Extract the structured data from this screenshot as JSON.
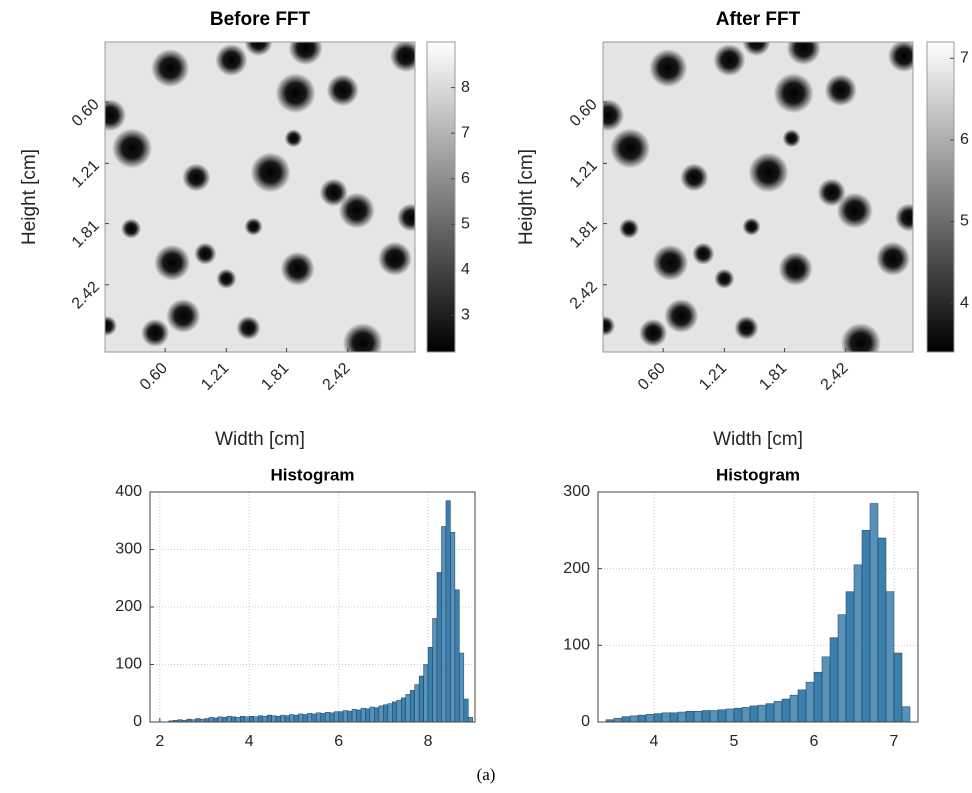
{
  "chart_data": [
    {
      "type": "image",
      "title": "Before FFT",
      "xlabel": "Width [cm]",
      "ylabel": "Height [cm]",
      "xlim": [
        0,
        3.09
      ],
      "ylim": [
        0,
        3.09
      ],
      "yreverse": true,
      "xticks": [
        {
          "value": 0.6,
          "label": "0.60"
        },
        {
          "value": 1.21,
          "label": "1.21"
        },
        {
          "value": 1.81,
          "label": "1.81"
        },
        {
          "value": 2.42,
          "label": "2.42"
        }
      ],
      "yticks": [
        {
          "value": 0.6,
          "label": "0.60"
        },
        {
          "value": 1.21,
          "label": "1.21"
        },
        {
          "value": 1.81,
          "label": "1.81"
        },
        {
          "value": 2.42,
          "label": "2.42"
        }
      ],
      "colormap": "gray",
      "clim": [
        2.2,
        9.0
      ],
      "cticks": [
        3,
        4,
        5,
        6,
        7,
        8
      ],
      "background": 8.3,
      "spots": [
        {
          "x": 0.65,
          "y": 0.26,
          "r": 0.19
        },
        {
          "x": 1.26,
          "y": 0.18,
          "r": 0.16
        },
        {
          "x": 1.53,
          "y": 0.0,
          "r": 0.14
        },
        {
          "x": 2.0,
          "y": 0.06,
          "r": 0.17
        },
        {
          "x": 3.0,
          "y": 0.14,
          "r": 0.16
        },
        {
          "x": 0.05,
          "y": 0.73,
          "r": 0.16
        },
        {
          "x": 0.27,
          "y": 1.06,
          "r": 0.2
        },
        {
          "x": 1.9,
          "y": 0.51,
          "r": 0.2
        },
        {
          "x": 2.37,
          "y": 0.48,
          "r": 0.16
        },
        {
          "x": 1.88,
          "y": 0.96,
          "r": 0.09
        },
        {
          "x": 0.91,
          "y": 1.35,
          "r": 0.14
        },
        {
          "x": 1.65,
          "y": 1.3,
          "r": 0.2
        },
        {
          "x": 2.28,
          "y": 1.5,
          "r": 0.14
        },
        {
          "x": 2.51,
          "y": 1.68,
          "r": 0.18
        },
        {
          "x": 3.05,
          "y": 1.75,
          "r": 0.14
        },
        {
          "x": 0.26,
          "y": 1.86,
          "r": 0.1
        },
        {
          "x": 1.48,
          "y": 1.84,
          "r": 0.09
        },
        {
          "x": 0.67,
          "y": 2.2,
          "r": 0.18
        },
        {
          "x": 1.0,
          "y": 2.11,
          "r": 0.11
        },
        {
          "x": 1.21,
          "y": 2.36,
          "r": 0.1
        },
        {
          "x": 1.92,
          "y": 2.26,
          "r": 0.17
        },
        {
          "x": 2.89,
          "y": 2.16,
          "r": 0.17
        },
        {
          "x": 0.78,
          "y": 2.73,
          "r": 0.17
        },
        {
          "x": 0.5,
          "y": 2.9,
          "r": 0.14
        },
        {
          "x": 1.43,
          "y": 2.85,
          "r": 0.12
        },
        {
          "x": 2.57,
          "y": 3.0,
          "r": 0.2
        },
        {
          "x": 0.02,
          "y": 2.83,
          "r": 0.1
        }
      ]
    },
    {
      "type": "image",
      "title": "After FFT",
      "xlabel": "Width [cm]",
      "ylabel": "Height [cm]",
      "xlim": [
        0,
        3.09
      ],
      "ylim": [
        0,
        3.09
      ],
      "yreverse": true,
      "xticks": [
        {
          "value": 0.6,
          "label": "0.60"
        },
        {
          "value": 1.21,
          "label": "1.21"
        },
        {
          "value": 1.81,
          "label": "1.81"
        },
        {
          "value": 2.42,
          "label": "2.42"
        }
      ],
      "yticks": [
        {
          "value": 0.6,
          "label": "0.60"
        },
        {
          "value": 1.21,
          "label": "1.21"
        },
        {
          "value": 1.81,
          "label": "1.81"
        },
        {
          "value": 2.42,
          "label": "2.42"
        }
      ],
      "colormap": "gray",
      "clim": [
        3.4,
        7.2
      ],
      "cticks": [
        4,
        5,
        6,
        7
      ],
      "background": 6.8,
      "spots": [
        {
          "x": 0.65,
          "y": 0.26,
          "r": 0.19
        },
        {
          "x": 1.26,
          "y": 0.18,
          "r": 0.16
        },
        {
          "x": 1.53,
          "y": 0.0,
          "r": 0.14
        },
        {
          "x": 2.0,
          "y": 0.06,
          "r": 0.17
        },
        {
          "x": 3.0,
          "y": 0.14,
          "r": 0.16
        },
        {
          "x": 0.05,
          "y": 0.73,
          "r": 0.16
        },
        {
          "x": 0.27,
          "y": 1.06,
          "r": 0.2
        },
        {
          "x": 1.9,
          "y": 0.51,
          "r": 0.2
        },
        {
          "x": 2.37,
          "y": 0.48,
          "r": 0.16
        },
        {
          "x": 1.88,
          "y": 0.96,
          "r": 0.09
        },
        {
          "x": 0.91,
          "y": 1.35,
          "r": 0.14
        },
        {
          "x": 1.65,
          "y": 1.3,
          "r": 0.2
        },
        {
          "x": 2.28,
          "y": 1.5,
          "r": 0.14
        },
        {
          "x": 2.51,
          "y": 1.68,
          "r": 0.18
        },
        {
          "x": 3.05,
          "y": 1.75,
          "r": 0.14
        },
        {
          "x": 0.26,
          "y": 1.86,
          "r": 0.1
        },
        {
          "x": 1.48,
          "y": 1.84,
          "r": 0.09
        },
        {
          "x": 0.67,
          "y": 2.2,
          "r": 0.18
        },
        {
          "x": 1.0,
          "y": 2.11,
          "r": 0.11
        },
        {
          "x": 1.21,
          "y": 2.36,
          "r": 0.1
        },
        {
          "x": 1.92,
          "y": 2.26,
          "r": 0.17
        },
        {
          "x": 2.89,
          "y": 2.16,
          "r": 0.17
        },
        {
          "x": 0.78,
          "y": 2.73,
          "r": 0.17
        },
        {
          "x": 0.5,
          "y": 2.9,
          "r": 0.14
        },
        {
          "x": 1.43,
          "y": 2.85,
          "r": 0.12
        },
        {
          "x": 2.57,
          "y": 3.0,
          "r": 0.2
        },
        {
          "x": 0.02,
          "y": 2.83,
          "r": 0.1
        }
      ]
    },
    {
      "type": "histogram",
      "title": "Histogram",
      "color": "#3b7fad",
      "grid": true,
      "xlim": [
        1.78,
        9.05
      ],
      "ylim": [
        0,
        400
      ],
      "xticks": [
        2,
        4,
        6,
        8
      ],
      "yticks": [
        0,
        100,
        200,
        300,
        400
      ],
      "bins": [
        2.2,
        2.3,
        2.4,
        2.5,
        2.6,
        2.7,
        2.8,
        2.9,
        3.0,
        3.1,
        3.2,
        3.3,
        3.4,
        3.5,
        3.6,
        3.7,
        3.8,
        3.9,
        4.0,
        4.1,
        4.2,
        4.3,
        4.4,
        4.5,
        4.6,
        4.7,
        4.8,
        4.9,
        5.0,
        5.1,
        5.2,
        5.3,
        5.4,
        5.5,
        5.6,
        5.7,
        5.8,
        5.9,
        6.0,
        6.1,
        6.2,
        6.3,
        6.4,
        6.5,
        6.6,
        6.7,
        6.8,
        6.9,
        7.0,
        7.1,
        7.2,
        7.3,
        7.4,
        7.5,
        7.6,
        7.7,
        7.8,
        7.9,
        8.0,
        8.1,
        8.2,
        8.3,
        8.4,
        8.5,
        8.6,
        8.7,
        8.8,
        8.9,
        9.0
      ],
      "values": [
        2,
        3,
        4,
        3,
        5,
        4,
        6,
        5,
        6,
        8,
        7,
        9,
        8,
        10,
        9,
        8,
        10,
        9,
        10,
        9,
        11,
        10,
        12,
        11,
        10,
        12,
        11,
        13,
        12,
        14,
        13,
        15,
        14,
        16,
        15,
        17,
        16,
        18,
        18,
        20,
        19,
        22,
        21,
        24,
        23,
        26,
        25,
        28,
        30,
        32,
        35,
        38,
        42,
        48,
        55,
        65,
        80,
        100,
        130,
        180,
        260,
        340,
        385,
        330,
        230,
        120,
        40,
        8
      ]
    },
    {
      "type": "histogram",
      "title": "Histogram",
      "color": "#3b7fad",
      "grid": true,
      "xlim": [
        3.3,
        7.3
      ],
      "ylim": [
        0,
        300
      ],
      "xticks": [
        4,
        5,
        6,
        7
      ],
      "yticks": [
        0,
        100,
        200,
        300
      ],
      "bins": [
        3.4,
        3.5,
        3.6,
        3.7,
        3.8,
        3.9,
        4.0,
        4.1,
        4.2,
        4.3,
        4.4,
        4.5,
        4.6,
        4.7,
        4.8,
        4.9,
        5.0,
        5.1,
        5.2,
        5.3,
        5.4,
        5.5,
        5.6,
        5.7,
        5.8,
        5.9,
        6.0,
        6.1,
        6.2,
        6.3,
        6.4,
        6.5,
        6.6,
        6.7,
        6.8,
        6.9,
        7.0,
        7.1,
        7.2
      ],
      "values": [
        3,
        5,
        7,
        8,
        9,
        10,
        11,
        12,
        12,
        13,
        14,
        14,
        15,
        15,
        16,
        17,
        18,
        19,
        21,
        22,
        24,
        27,
        30,
        35,
        42,
        52,
        65,
        85,
        110,
        140,
        170,
        205,
        250,
        285,
        240,
        170,
        90,
        20
      ]
    }
  ],
  "caption": "(a)"
}
